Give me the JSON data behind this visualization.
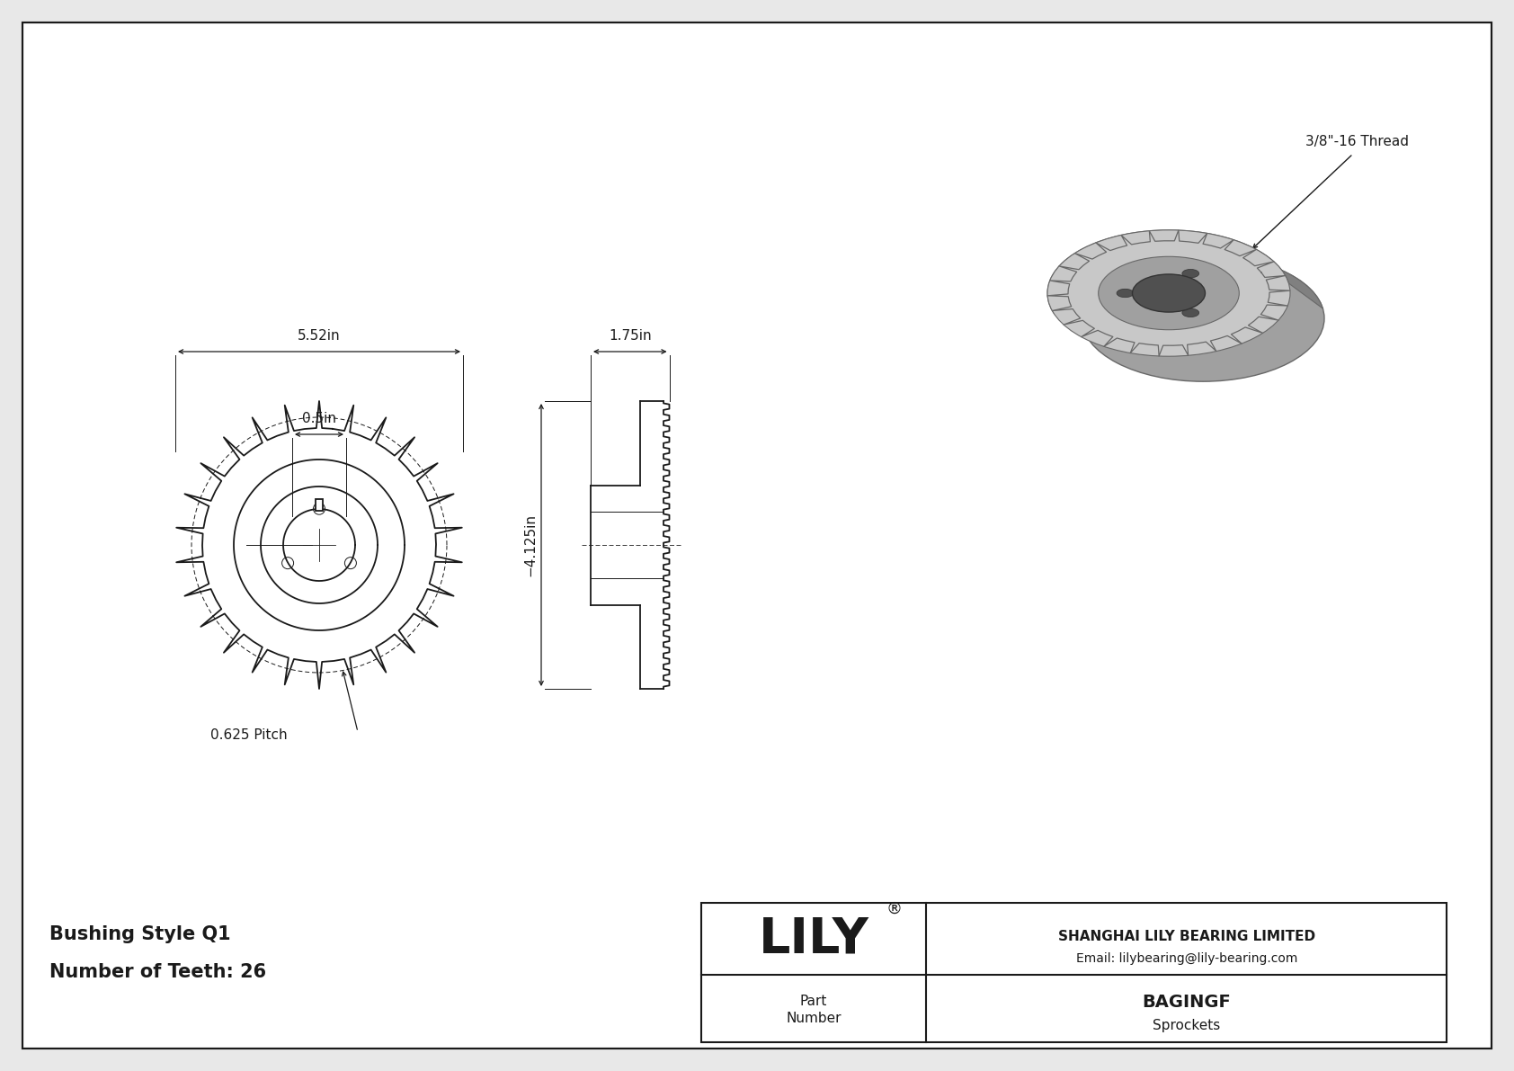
{
  "bg_color": "#e8e8e8",
  "inner_bg": "#ffffff",
  "line_color": "#1a1a1a",
  "dim_color": "#1a1a1a",
  "part_number": "BAGINGF",
  "category": "Sprockets",
  "company": "SHANGHAI LILY BEARING LIMITED",
  "email": "Email: lilybearing@lily-bearing.com",
  "bushing_style": "Bushing Style Q1",
  "num_teeth": "Number of Teeth: 26",
  "thread_label": "3/8\"-16 Thread",
  "dim_552": "5.52in",
  "dim_05": "0.5in",
  "dim_175": "1.75in",
  "dim_4125": "−4.125in",
  "dim_pitch": "0.625 Pitch",
  "num_teeth_val": 26,
  "iso_colors": {
    "face_light": "#c8c8c8",
    "face_dark": "#a0a0a0",
    "side_dark": "#808080",
    "bore_dark": "#505050",
    "tooth_edge": "#686868"
  }
}
